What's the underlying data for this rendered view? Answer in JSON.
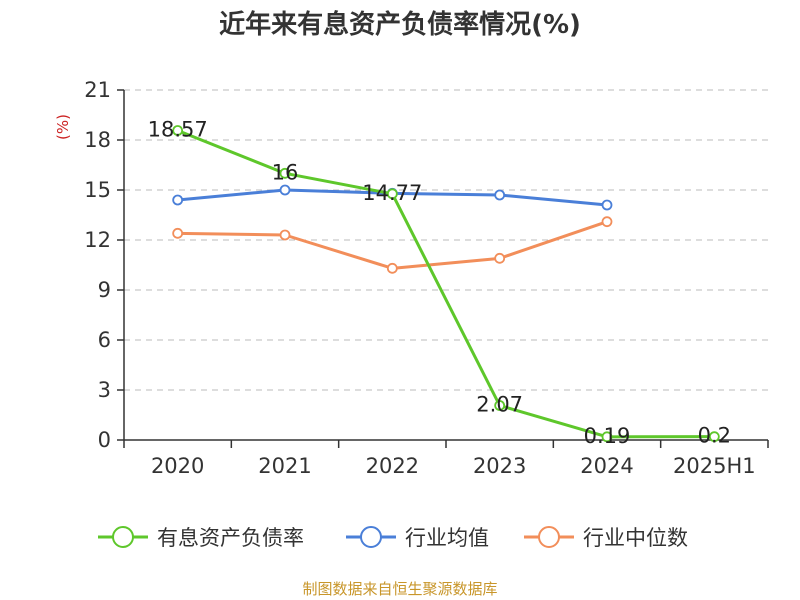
{
  "chart_data": {
    "type": "line",
    "title": "近年来有息资产负债率情况(%)",
    "ylabel": "(%)",
    "categories": [
      "2020",
      "2021",
      "2022",
      "2023",
      "2024",
      "2025H1"
    ],
    "ylim": [
      0,
      21
    ],
    "yticks": [
      0,
      3,
      6,
      9,
      12,
      15,
      18,
      21
    ],
    "grid": true,
    "legend_position": "bottom",
    "series": [
      {
        "name": "有息资产负债率",
        "color": "#5ec72b",
        "values": [
          18.57,
          16,
          14.77,
          2.07,
          0.19,
          0.2
        ],
        "labels": [
          "18.57",
          "16",
          "14.77",
          "2.07",
          "0.19",
          "0.2"
        ]
      },
      {
        "name": "行业均值",
        "color": "#4a7fd8",
        "values": [
          14.4,
          15.0,
          14.8,
          14.7,
          14.1,
          null
        ]
      },
      {
        "name": "行业中位数",
        "color": "#f28e5a",
        "values": [
          12.4,
          12.3,
          10.3,
          10.9,
          13.1,
          null
        ]
      }
    ]
  },
  "source": {
    "text": "制图数据来自恒生聚源数据库",
    "color": "#c8962a"
  },
  "ylabel_color": "#cc2222"
}
